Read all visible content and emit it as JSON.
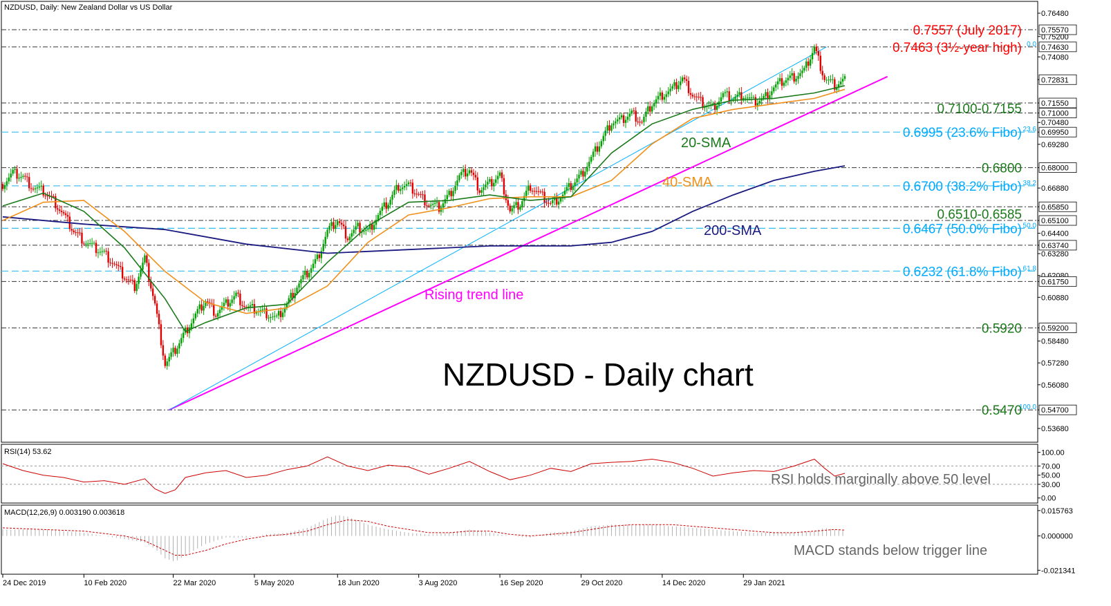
{
  "header": {
    "main": "NZDUSD, Daily:  New Zealand Dollar vs US Dollar",
    "rsi": "RSI(14) 53.62",
    "macd": "MACD(12,26,9) 0.003190 0.003618"
  },
  "colors": {
    "bull": "#00a000",
    "bear": "#e00000",
    "sma20": "#1a7a1a",
    "sma40": "#f0901a",
    "sma200": "#1a1a80",
    "trend": "#ff00ff",
    "channel": "#00b0ff",
    "fibo": "#00aaff",
    "resist": "#ff0000",
    "level": "#1a7a1a",
    "rsi": "#cc0000",
    "grey": "#666666"
  },
  "chart_data": [
    {
      "type": "line",
      "title": "NZDUSD - Daily chart",
      "ylim": [
        0.53,
        0.769
      ],
      "x_ticks": [
        "24 Dec 2019",
        "10 Feb 2020",
        "22 Mar 2020",
        "5 May 2020",
        "18 Jun 2020",
        "3 Aug 2020",
        "16 Sep 2020",
        "29 Oct 2020",
        "14 Dec 2020",
        "29 Jan 2021"
      ],
      "y_ticks": [
        "0.76480",
        "0.75200",
        "0.74080",
        "0.72831",
        "0.71550",
        "0.71000",
        "0.70480",
        "0.69950",
        "0.69280",
        "0.68000",
        "0.66880",
        "0.65850",
        "0.65100",
        "0.64400",
        "0.63740",
        "0.63280",
        "0.62080",
        "0.61750",
        "0.60880",
        "0.59200",
        "0.58480",
        "0.57280",
        "0.56080",
        "0.54700",
        "0.53680"
      ],
      "y_tick_values": [
        0.7648,
        0.752,
        0.7408,
        0.72831,
        0.7155,
        0.71,
        0.7048,
        0.6995,
        0.6928,
        0.68,
        0.6688,
        0.6585,
        0.651,
        0.644,
        0.6374,
        0.6328,
        0.6208,
        0.6175,
        0.6088,
        0.592,
        0.5848,
        0.5728,
        0.5608,
        0.547,
        0.5368
      ],
      "boxed_ticks": [
        "0.75570",
        "0.74630",
        "0.72831",
        "0.71550",
        "0.71000",
        "0.69950",
        "0.68000",
        "0.65850",
        "0.65100",
        "0.63740",
        "0.61750",
        "0.59200",
        "0.54700"
      ],
      "boxed_values": [
        0.7557,
        0.7463,
        0.72831,
        0.7155,
        0.71,
        0.6995,
        0.68,
        0.6585,
        0.651,
        0.6374,
        0.6175,
        0.592,
        0.547
      ],
      "horizontal_levels": [
        0.7557,
        0.7463,
        0.7155,
        0.71,
        0.6995,
        0.68,
        0.67,
        0.6585,
        0.651,
        0.6467,
        0.6374,
        0.6232,
        0.6175,
        0.592,
        0.547
      ],
      "fibo_levels": [
        {
          "value": 0.7463,
          "tag": "0.0"
        },
        {
          "value": 0.6995,
          "tag": "23.6"
        },
        {
          "value": 0.67,
          "tag": "38.2"
        },
        {
          "value": 0.6467,
          "tag": "50.0"
        },
        {
          "value": 0.6232,
          "tag": "61.8"
        },
        {
          "value": 0.547,
          "tag": "100.0"
        }
      ],
      "annotations": [
        {
          "text": "0.7557 (July 2017)",
          "value": 0.7557,
          "role": "resist"
        },
        {
          "text": "0.7463 (3½-year  high)",
          "value": 0.7463,
          "role": "resist"
        },
        {
          "text": "0.7100-0.7155",
          "value": 0.7127,
          "role": "level"
        },
        {
          "text": "0.6995 (23.6% Fibo)",
          "value": 0.6995,
          "role": "fibo"
        },
        {
          "text": "0.6800",
          "value": 0.68,
          "role": "level"
        },
        {
          "text": "0.6700 (38.2% Fibo)",
          "value": 0.67,
          "role": "fibo"
        },
        {
          "text": "0.6510-0.6585",
          "value": 0.6547,
          "role": "level"
        },
        {
          "text": "0.6467 (50.0% Fibo)",
          "value": 0.6467,
          "role": "fibo"
        },
        {
          "text": "0.6232 (61.8% Fibo)",
          "value": 0.6232,
          "role": "fibo"
        },
        {
          "text": "0.5920",
          "value": 0.592,
          "role": "level"
        },
        {
          "text": "0.5470",
          "value": 0.547,
          "role": "level"
        }
      ],
      "labels": {
        "sma20": "20-SMA",
        "sma40": "40-SMA",
        "sma200": "200-SMA",
        "trend": "Rising trend line"
      },
      "series": [
        {
          "name": "Close",
          "x": [
            0,
            5,
            10,
            15,
            20,
            25,
            30,
            35,
            40,
            45,
            50,
            55,
            60,
            65,
            70,
            75,
            80,
            85,
            90,
            95,
            100,
            105,
            110,
            115,
            120,
            125,
            130,
            135,
            140,
            145,
            150,
            155,
            160,
            165,
            170,
            175,
            180,
            185,
            190,
            195,
            200,
            205,
            210,
            215,
            220,
            225,
            230,
            235,
            240,
            245,
            250,
            255,
            260,
            265,
            270,
            275,
            280,
            285,
            290,
            295,
            300,
            305,
            310,
            315,
            320,
            325,
            330,
            335,
            340,
            345,
            350,
            355,
            360,
            365,
            370,
            375,
            380,
            385,
            390,
            395,
            400,
            405,
            410,
            415
          ],
          "values": [
            0.671,
            0.677,
            0.675,
            0.669,
            0.667,
            0.662,
            0.654,
            0.645,
            0.64,
            0.636,
            0.633,
            0.627,
            0.62,
            0.615,
            0.63,
            0.605,
            0.572,
            0.58,
            0.59,
            0.599,
            0.607,
            0.6,
            0.605,
            0.61,
            0.603,
            0.602,
            0.6,
            0.597,
            0.605,
            0.615,
            0.622,
            0.63,
            0.645,
            0.651,
            0.642,
            0.647,
            0.645,
            0.654,
            0.661,
            0.67,
            0.67,
            0.665,
            0.66,
            0.658,
            0.665,
            0.675,
            0.679,
            0.668,
            0.671,
            0.676,
            0.656,
            0.66,
            0.67,
            0.665,
            0.66,
            0.664,
            0.67,
            0.676,
            0.685,
            0.695,
            0.705,
            0.706,
            0.71,
            0.705,
            0.715,
            0.72,
            0.723,
            0.729,
            0.72,
            0.715,
            0.713,
            0.72,
            0.718,
            0.72,
            0.716,
            0.718,
            0.724,
            0.728,
            0.73,
            0.733,
            0.746,
            0.729,
            0.725,
            0.728
          ]
        },
        {
          "name": "20-SMA",
          "x": [
            0,
            20,
            40,
            60,
            80,
            90,
            100,
            120,
            140,
            160,
            180,
            200,
            220,
            240,
            260,
            280,
            300,
            320,
            340,
            360,
            380,
            400,
            415
          ],
          "values": [
            0.659,
            0.666,
            0.656,
            0.636,
            0.608,
            0.59,
            0.595,
            0.603,
            0.605,
            0.628,
            0.648,
            0.661,
            0.662,
            0.665,
            0.662,
            0.664,
            0.688,
            0.704,
            0.712,
            0.717,
            0.718,
            0.721,
            0.725
          ]
        },
        {
          "name": "40-SMA",
          "x": [
            0,
            20,
            40,
            60,
            80,
            100,
            120,
            140,
            160,
            180,
            200,
            220,
            240,
            260,
            280,
            300,
            320,
            340,
            360,
            380,
            400,
            415
          ],
          "values": [
            0.651,
            0.661,
            0.662,
            0.645,
            0.623,
            0.606,
            0.6,
            0.603,
            0.615,
            0.639,
            0.654,
            0.658,
            0.663,
            0.664,
            0.664,
            0.673,
            0.693,
            0.707,
            0.712,
            0.715,
            0.718,
            0.723
          ]
        },
        {
          "name": "200-SMA",
          "x": [
            0,
            40,
            80,
            120,
            160,
            200,
            240,
            280,
            300,
            320,
            340,
            360,
            380,
            400,
            415
          ],
          "values": [
            0.653,
            0.649,
            0.646,
            0.638,
            0.633,
            0.635,
            0.637,
            0.637,
            0.639,
            0.645,
            0.656,
            0.665,
            0.673,
            0.678,
            0.681
          ]
        }
      ]
    },
    {
      "type": "line",
      "title": "RSI(14) 53.62",
      "ylim": [
        -5,
        110
      ],
      "y_ticks": [
        "100.00",
        "70.00",
        "50.00",
        "30.00",
        "0.00"
      ],
      "y_tick_values": [
        100,
        70,
        50,
        30,
        0
      ],
      "annotation": "RSI holds marginally above 50 level",
      "series": [
        {
          "name": "RSI",
          "x": [
            0,
            10,
            20,
            30,
            40,
            50,
            60,
            70,
            75,
            80,
            85,
            90,
            100,
            110,
            120,
            130,
            140,
            150,
            160,
            170,
            180,
            190,
            200,
            210,
            220,
            230,
            240,
            250,
            260,
            270,
            280,
            290,
            300,
            310,
            320,
            330,
            340,
            350,
            360,
            370,
            380,
            390,
            400,
            405,
            410,
            415
          ],
          "values": [
            75,
            60,
            50,
            45,
            35,
            38,
            30,
            42,
            20,
            10,
            18,
            45,
            55,
            60,
            45,
            50,
            62,
            70,
            90,
            70,
            60,
            72,
            68,
            52,
            65,
            80,
            58,
            40,
            50,
            65,
            58,
            75,
            78,
            80,
            85,
            78,
            65,
            48,
            55,
            60,
            58,
            70,
            85,
            65,
            48,
            54
          ]
        }
      ]
    },
    {
      "type": "bar",
      "title": "MACD(12,26,9) 0.003190 0.003618",
      "ylim": [
        -0.0225,
        0.017
      ],
      "y_ticks": [
        "0.015763",
        "0.000000",
        "-0.021341"
      ],
      "y_tick_values": [
        0.015763,
        0,
        -0.021341
      ],
      "annotation": "MACD stands below trigger line",
      "series": [
        {
          "name": "MACD",
          "x": [
            0,
            20,
            40,
            60,
            70,
            75,
            80,
            85,
            90,
            100,
            110,
            120,
            130,
            140,
            150,
            160,
            165,
            170,
            180,
            190,
            200,
            210,
            220,
            230,
            240,
            250,
            260,
            270,
            280,
            290,
            300,
            310,
            320,
            330,
            340,
            350,
            360,
            370,
            380,
            390,
            400,
            405,
            410,
            415
          ],
          "values": [
            0.004,
            0.004,
            0.002,
            -0.002,
            -0.004,
            -0.008,
            -0.014,
            -0.016,
            -0.012,
            -0.005,
            -0.001,
            -0.001,
            0.001,
            0.002,
            0.005,
            0.011,
            0.013,
            0.012,
            0.007,
            0.004,
            0.002,
            0.001,
            0.002,
            0.004,
            0.002,
            0.0,
            -0.001,
            0.002,
            0.003,
            0.006,
            0.007,
            0.007,
            0.007,
            0.006,
            0.005,
            0.004,
            0.003,
            0.002,
            0.002,
            0.002,
            0.003,
            0.005,
            0.004,
            0.003
          ]
        },
        {
          "name": "Signal",
          "x": [
            0,
            20,
            40,
            60,
            70,
            80,
            85,
            90,
            100,
            110,
            120,
            130,
            140,
            150,
            160,
            170,
            180,
            190,
            200,
            210,
            220,
            230,
            240,
            250,
            260,
            270,
            280,
            290,
            300,
            310,
            320,
            330,
            340,
            350,
            360,
            370,
            380,
            390,
            400,
            410,
            415
          ],
          "values": [
            0.005,
            0.004,
            0.003,
            0.0,
            -0.003,
            -0.009,
            -0.012,
            -0.012,
            -0.009,
            -0.005,
            -0.002,
            0.0,
            0.001,
            0.003,
            0.007,
            0.01,
            0.009,
            0.006,
            0.004,
            0.002,
            0.002,
            0.003,
            0.003,
            0.001,
            0.0,
            0.001,
            0.002,
            0.004,
            0.006,
            0.007,
            0.007,
            0.007,
            0.006,
            0.005,
            0.004,
            0.003,
            0.002,
            0.002,
            0.003,
            0.004,
            0.0036
          ]
        }
      ]
    }
  ]
}
